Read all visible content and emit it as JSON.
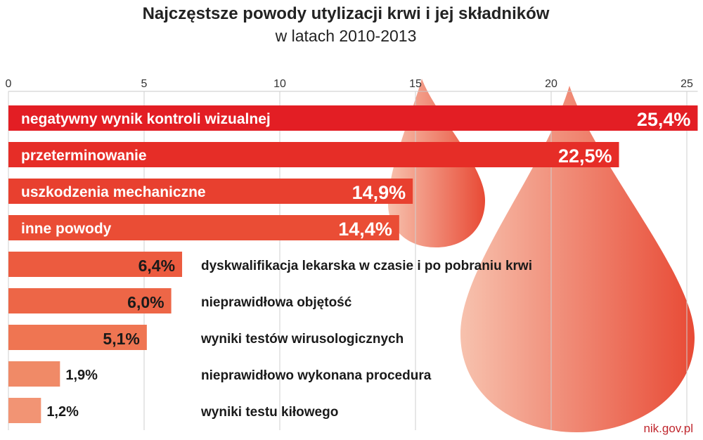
{
  "title": "Najczęstsze powody utylizacji krwi i jej składników",
  "subtitle": "w latach 2010-2013",
  "source": "nik.gov.pl",
  "chart_data": {
    "type": "bar",
    "orientation": "horizontal",
    "title": "Najczęstsze powody utylizacji krwi i jej składników",
    "subtitle": "w latach 2010-2013",
    "xlabel": "",
    "ylabel": "",
    "xlim": [
      0,
      25.4
    ],
    "x_ticks": [
      0,
      5,
      10,
      15,
      20,
      25
    ],
    "grid": true,
    "categories": [
      "negatywny wynik kontroli wizualnej",
      "przeterminowanie",
      "uszkodzenia mechaniczne",
      "inne powody",
      "dyskwalifikacja lekarska w czasie i po pobraniu krwi",
      "nieprawidłowa objętość",
      "wyniki testów wirusologicznych",
      "nieprawidłowo wykonana procedura",
      "wyniki testu kiłowego"
    ],
    "values": [
      25.4,
      22.5,
      14.9,
      14.4,
      6.4,
      6.0,
      5.1,
      1.9,
      1.2
    ],
    "value_labels": [
      "25,4%",
      "22,5%",
      "14,9%",
      "14,4%",
      "6,4%",
      "6,0%",
      "5,1%",
      "1,9%",
      "1,2%"
    ],
    "colors": [
      "#e31e24",
      "#e62d27",
      "#e8402f",
      "#ea4d35",
      "#ec5b3f",
      "#ed6647",
      "#ef7552",
      "#f08a67",
      "#f29474"
    ],
    "background_drops": [
      "#e84a35",
      "#f7c2ae"
    ]
  }
}
